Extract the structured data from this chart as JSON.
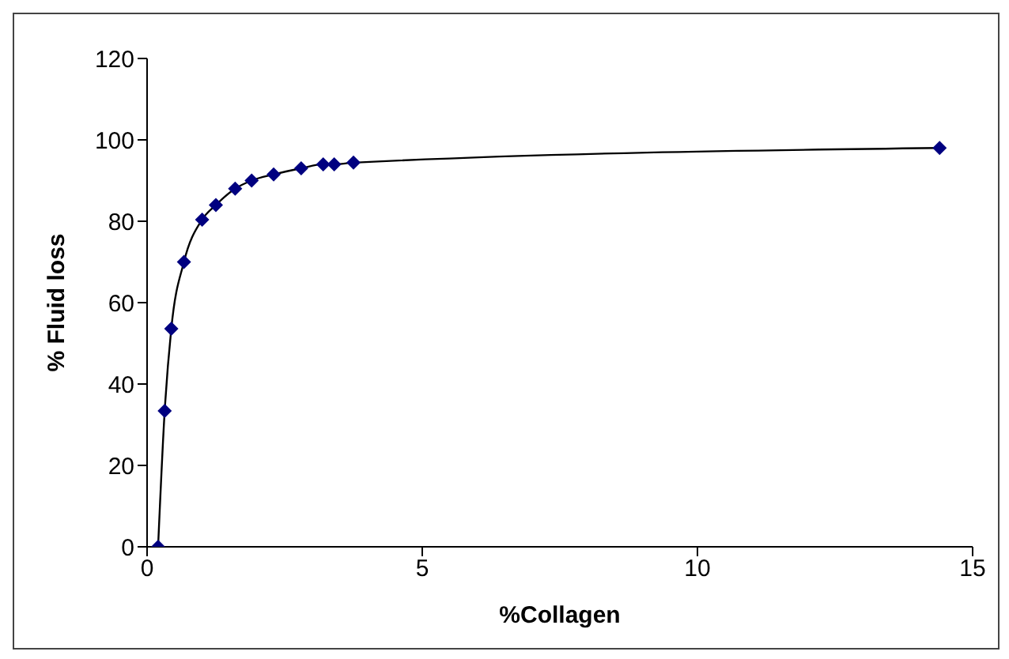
{
  "chart_data": {
    "type": "line",
    "xlabel": "%Collagen",
    "ylabel": "% Fluid loss",
    "x": [
      0.2,
      0.32,
      0.44,
      0.67,
      1.0,
      1.25,
      1.6,
      1.9,
      2.3,
      2.8,
      3.2,
      3.4,
      3.75,
      14.4
    ],
    "series": [
      {
        "color": "#000080",
        "values": [
          0,
          33.4,
          53.6,
          70,
          80.4,
          84,
          88,
          90,
          91.5,
          93,
          94,
          94,
          94.4,
          98
        ]
      }
    ],
    "xlim": [
      0,
      15
    ],
    "xticks": [
      0,
      5,
      10,
      15
    ],
    "ylim": [
      0,
      120
    ],
    "yticks": [
      0,
      20,
      40,
      60,
      80,
      100,
      120
    ],
    "grid": false,
    "legend": false,
    "marker": "diamond",
    "line_style": "solid"
  }
}
